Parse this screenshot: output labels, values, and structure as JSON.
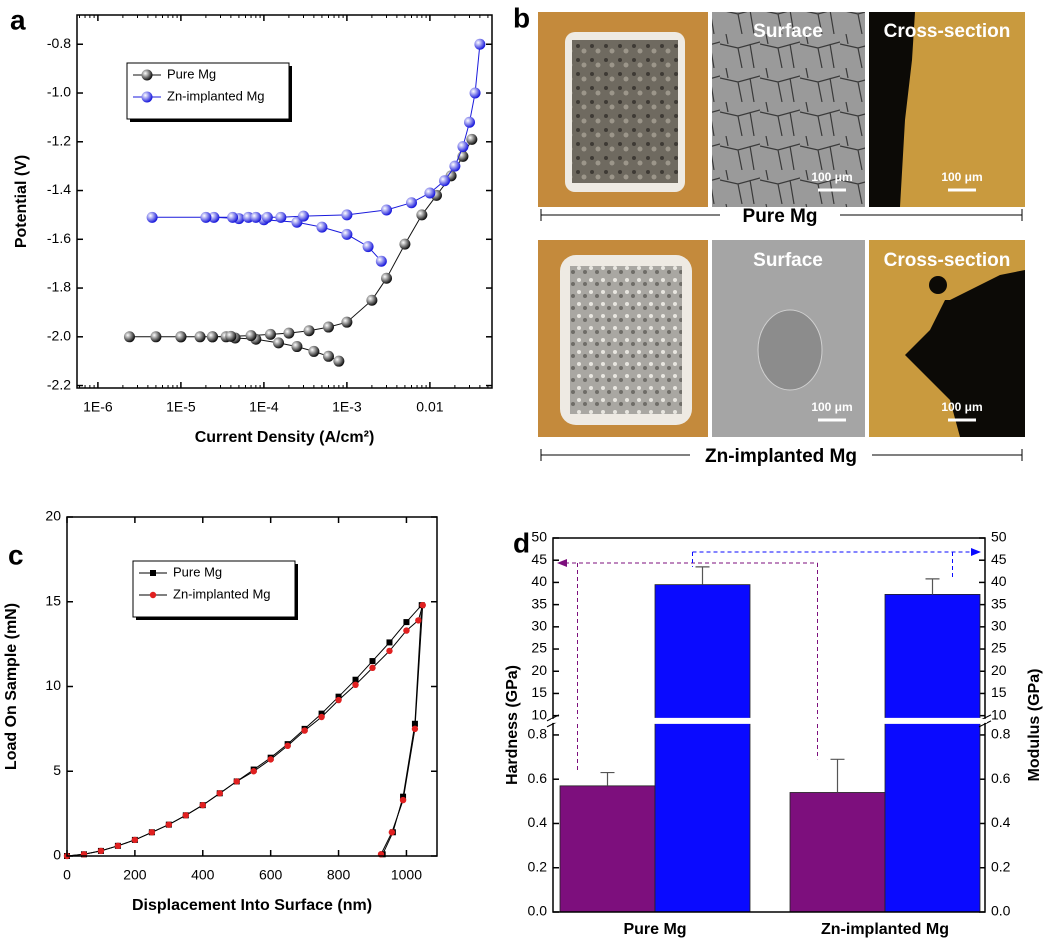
{
  "chart_data": [
    {
      "panel_label": "a",
      "type": "line",
      "xlabel": "Current Density (A/cm²)",
      "ylabel": "Potential (V)",
      "xlog": true,
      "xlim": [
        5.6e-07,
        0.056
      ],
      "ylim": [
        -2.21,
        -0.68
      ],
      "xticks": [
        {
          "value": 1e-06,
          "label": "1E-6"
        },
        {
          "value": 1e-05,
          "label": "1E-5"
        },
        {
          "value": 0.0001,
          "label": "1E-4"
        },
        {
          "value": 0.001,
          "label": "1E-3"
        },
        0.01
      ],
      "yticks": [
        -2.2,
        {
          "value": -2,
          "label": "-2.0"
        },
        -1.8,
        -1.6,
        -1.4,
        -1.2,
        {
          "value": -1,
          "label": "-1.0"
        },
        -0.8
      ],
      "legend": "upper left",
      "series": [
        {
          "name": "Pure Mg",
          "color": "#111111",
          "marker": "sphere",
          "x": [
            0.0008,
            0.0006,
            0.0004,
            0.00025,
            0.00015,
            8e-05,
            4.5e-05,
            3.5e-05,
            2.4e-05,
            1.7e-05,
            1e-05,
            5e-06,
            2.4e-06,
            1e-05,
            2.4e-05,
            4e-05,
            7e-05,
            0.00012,
            0.0002,
            0.00035,
            0.0006,
            0.001,
            0.002,
            0.003,
            0.005,
            0.008,
            0.012,
            0.018,
            0.025,
            0.032
          ],
          "values": [
            -2.1,
            -2.08,
            -2.06,
            -2.04,
            -2.025,
            -2.01,
            -2.005,
            -2,
            -2,
            -2,
            -2,
            -2,
            -2,
            -2,
            -2,
            -1.998,
            -1.995,
            -1.99,
            -1.985,
            -1.975,
            -1.96,
            -1.94,
            -1.85,
            -1.76,
            -1.62,
            -1.5,
            -1.42,
            -1.34,
            -1.26,
            -1.19
          ]
        },
        {
          "name": "Zn-implanted Mg",
          "color": "#1a1adc",
          "marker": "sphere",
          "x": [
            0.0026,
            0.0018,
            0.001,
            0.0005,
            0.00025,
            0.0001,
            5e-05,
            2.5e-05,
            4.5e-06,
            2e-05,
            4.2e-05,
            6.5e-05,
            8e-05,
            0.00011,
            0.00016,
            0.0003,
            0.001,
            0.003,
            0.006,
            0.01,
            0.015,
            0.02,
            0.025,
            0.03,
            0.035,
            0.04
          ],
          "values": [
            -1.69,
            -1.63,
            -1.58,
            -1.55,
            -1.53,
            -1.52,
            -1.515,
            -1.51,
            -1.51,
            -1.51,
            -1.51,
            -1.51,
            -1.51,
            -1.51,
            -1.51,
            -1.505,
            -1.5,
            -1.48,
            -1.45,
            -1.41,
            -1.36,
            -1.3,
            -1.22,
            -1.12,
            -1,
            -0.8
          ]
        }
      ]
    },
    {
      "panel_label": "c",
      "type": "line",
      "xlabel": "Displacement Into Surface (nm)",
      "ylabel": "Load On Sample (mN)",
      "xlim": [
        0,
        1090
      ],
      "ylim": [
        0,
        20
      ],
      "xticks": [
        0,
        200,
        400,
        600,
        800,
        1000
      ],
      "yticks": [
        0,
        5,
        10,
        15,
        20
      ],
      "legend": "upper left",
      "series": [
        {
          "name": "Pure Mg",
          "color": "#000000",
          "marker": "square",
          "x": [
            0,
            50,
            100,
            150,
            200,
            250,
            300,
            350,
            400,
            450,
            500,
            550,
            600,
            650,
            700,
            750,
            800,
            850,
            900,
            950,
            1000,
            1045,
            1025,
            990,
            960,
            930
          ],
          "values": [
            0,
            0.1,
            0.3,
            0.6,
            0.95,
            1.4,
            1.85,
            2.4,
            3,
            3.7,
            4.4,
            5.1,
            5.8,
            6.6,
            7.5,
            8.4,
            9.4,
            10.4,
            11.5,
            12.6,
            13.8,
            14.8,
            7.8,
            3.5,
            1.4,
            0.1
          ]
        },
        {
          "name": "Zn-implanted Mg",
          "color": "#e02020",
          "marker": "circle",
          "x": [
            0,
            50,
            100,
            150,
            200,
            250,
            300,
            350,
            400,
            450,
            500,
            550,
            600,
            650,
            700,
            750,
            800,
            850,
            900,
            950,
            1000,
            1035,
            1048,
            1025,
            990,
            957,
            925
          ],
          "values": [
            0,
            0.1,
            0.3,
            0.6,
            0.95,
            1.4,
            1.85,
            2.4,
            3,
            3.7,
            4.4,
            5,
            5.7,
            6.5,
            7.4,
            8.2,
            9.2,
            10.1,
            11.1,
            12.1,
            13.3,
            13.9,
            14.8,
            7.5,
            3.3,
            1.4,
            0.1
          ]
        }
      ]
    },
    {
      "panel_label": "d",
      "type": "bar",
      "ylabel": "Hardness (GPa)",
      "y2label": "Modulus (GPa)",
      "categories": [
        "Pure Mg",
        "Zn-implanted Mg"
      ],
      "ylim": [
        0,
        50
      ],
      "y2lim": [
        0,
        50
      ],
      "axis_break": [
        0.85,
        9.5
      ],
      "yticks": [
        {
          "value": 0,
          "label": "0.0"
        },
        0.2,
        0.4,
        0.6,
        0.8,
        10,
        15,
        20,
        25,
        30,
        35,
        40,
        45,
        50
      ],
      "y2ticks": [
        {
          "value": 0,
          "label": "0.0"
        },
        0.2,
        0.4,
        0.6,
        0.8,
        10,
        15,
        20,
        25,
        30,
        35,
        40,
        45,
        50
      ],
      "series": [
        {
          "color": "#7d0f7d",
          "values": [
            0.57,
            0.54
          ],
          "errors": [
            0.06,
            0.15
          ]
        },
        {
          "color": "#0a0aff",
          "axis": "y2",
          "values": [
            39.5,
            37.3
          ],
          "errors": [
            4,
            3.5
          ]
        }
      ]
    }
  ],
  "panel_b": {
    "label": "b",
    "rows": [
      {
        "caption": "Pure Mg",
        "titles": [
          "Surface",
          "Cross-section"
        ],
        "scale_bars": [
          "100 μm",
          "100 μm"
        ]
      },
      {
        "caption": "Zn-implanted Mg",
        "titles": [
          "Surface",
          "Cross-section"
        ],
        "scale_bars": [
          "100 μm",
          "100 μm"
        ]
      }
    ]
  }
}
